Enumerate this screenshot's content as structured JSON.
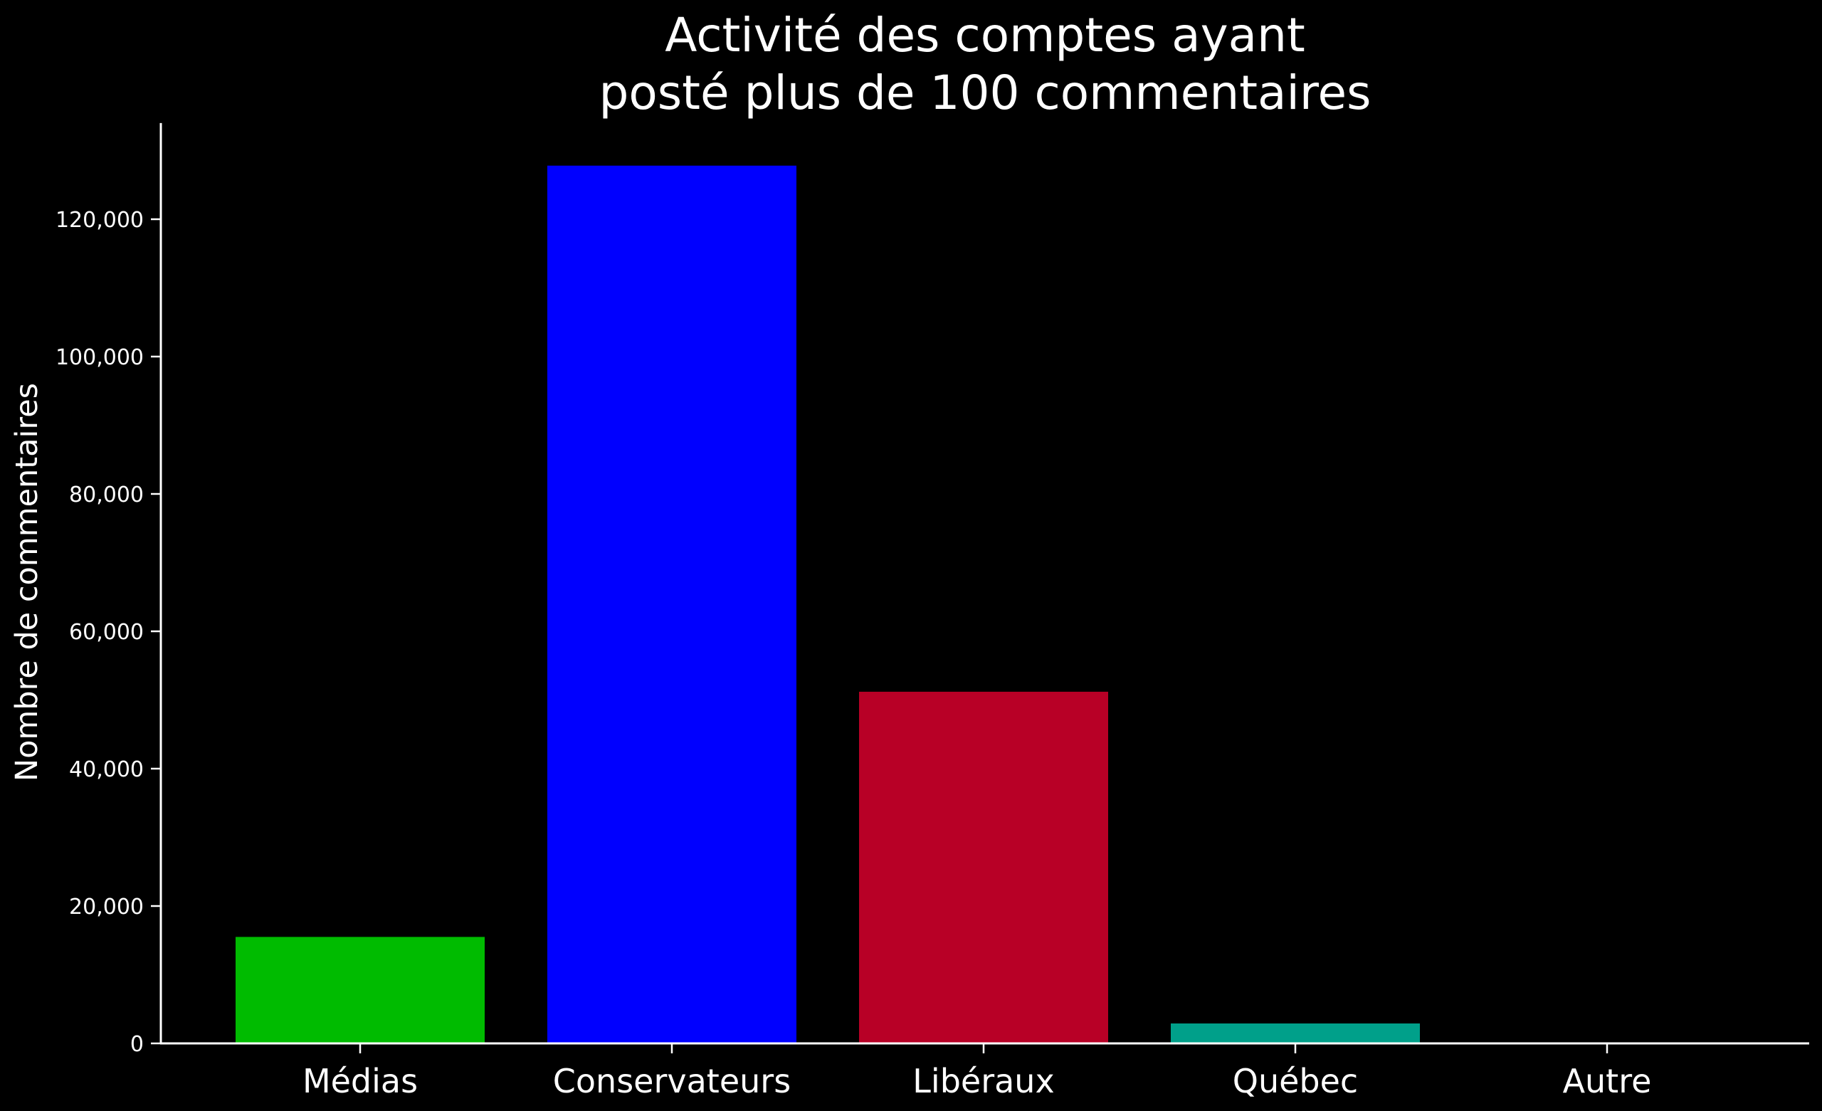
{
  "chart_data": {
    "type": "bar",
    "title_lines": [
      "Activité des comptes ayant",
      "posté plus de 100 commentaires"
    ],
    "xlabel": "",
    "ylabel": "Nombre de commentaires",
    "categories": [
      "Médias",
      "Conservateurs",
      "Libéraux",
      "Québec",
      "Autre"
    ],
    "values": [
      15500,
      127800,
      51200,
      2900,
      200
    ],
    "colors": [
      "#00bb00",
      "#0000ff",
      "#b80026",
      "#00a08a",
      "#000000"
    ],
    "ylim": [
      0,
      134000
    ],
    "yticks": [
      0,
      20000,
      40000,
      60000,
      80000,
      100000,
      120000
    ],
    "ytick_labels": [
      "0",
      "20,000",
      "40,000",
      "60,000",
      "80,000",
      "100,000",
      "120,000"
    ],
    "grid": false,
    "legend": "none",
    "background": "#000000",
    "axis_color": "#ffffff"
  }
}
